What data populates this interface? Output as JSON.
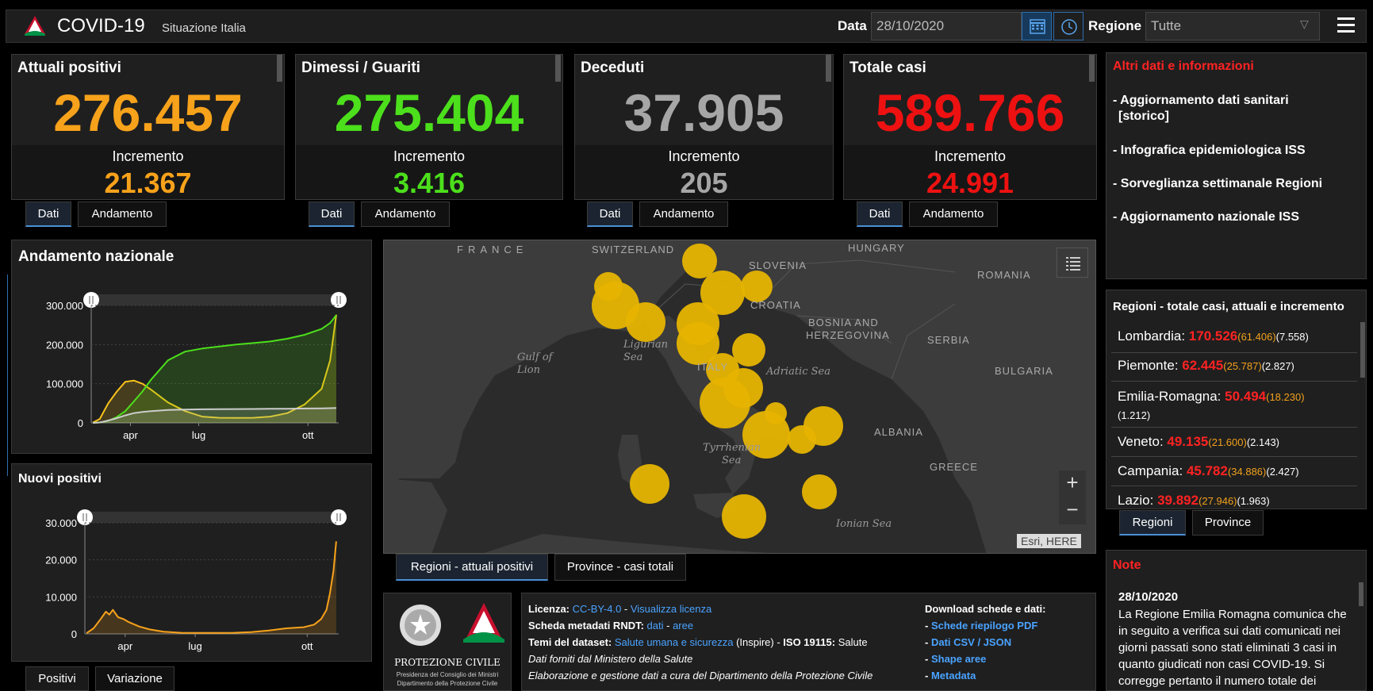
{
  "header": {
    "title": "COVID-19",
    "subtitle": "Situazione Italia",
    "date_label": "Data",
    "date_value": "28/10/2020",
    "region_label": "Regione",
    "region_value": "Tutte"
  },
  "stats": [
    {
      "title": "Attuali positivi",
      "value": "276.457",
      "incr_label": "Incremento",
      "incr": "21.367",
      "color": "#f7a21b"
    },
    {
      "title": "Dimessi / Guariti",
      "value": "275.404",
      "incr_label": "Incremento",
      "incr": "3.416",
      "color": "#4cdf1c"
    },
    {
      "title": "Deceduti",
      "value": "37.905",
      "incr_label": "Incremento",
      "incr": "205",
      "color": "#a6a6a6"
    },
    {
      "title": "Totale casi",
      "value": "589.766",
      "incr_label": "Incremento",
      "incr": "24.991",
      "color": "#ee1111"
    }
  ],
  "stat_tabs": {
    "dati": "Dati",
    "andamento": "Andamento"
  },
  "info": {
    "title": "Altri dati e informazioni",
    "items": [
      "- Aggiornamento dati sanitari",
      "[storico]",
      "- Infografica epidemiologica ISS",
      "- Sorveglianza settimanale Regioni",
      "- Aggiornamento nazionale ISS"
    ]
  },
  "regions": {
    "title": "Regioni - totale casi, attuali e incremento",
    "rows": [
      {
        "name": "Lombardia: ",
        "total": "170.526",
        "att": "(61.406)",
        "inc": "(7.558)"
      },
      {
        "name": "Piemonte: ",
        "total": "62.445",
        "att": "(25.787)",
        "inc": "(2.827)"
      },
      {
        "name": "Emilia-Romagna: ",
        "total": "50.494",
        "att": "(18.230)",
        "inc": "(1.212)"
      },
      {
        "name": "Veneto: ",
        "total": "49.135",
        "att": "(21.600)",
        "inc": "(2.143)"
      },
      {
        "name": "Campania: ",
        "total": "45.782",
        "att": "(34.886)",
        "inc": "(2.427)"
      },
      {
        "name": "Lazio: ",
        "total": "39.892",
        "att": "(27.946)",
        "inc": "(1.963)"
      }
    ],
    "tab_regioni": "Regioni",
    "tab_province": "Province"
  },
  "chart_data": [
    {
      "type": "area",
      "title": "Andamento nazionale",
      "x_ticks": [
        "apr",
        "lug",
        "ott"
      ],
      "y_ticks": [
        "0",
        "100.000",
        "200.000",
        "300.000"
      ],
      "ylim": [
        0,
        300000
      ],
      "x_months": [
        2.8,
        3.0,
        3.25,
        3.5,
        3.75,
        4.0,
        4.25,
        4.5,
        5.0,
        5.5,
        6.0,
        6.5,
        7.0,
        7.5,
        8.0,
        8.5,
        9.0,
        9.5,
        9.75,
        9.93
      ],
      "series": [
        {
          "name": "Attuali positivi",
          "color": "#f7c21b",
          "values": [
            1000,
            10000,
            50000,
            80000,
            105000,
            108000,
            100000,
            85000,
            52000,
            30000,
            16000,
            13000,
            12500,
            13000,
            16000,
            25000,
            47000,
            87000,
            160000,
            276457
          ]
        },
        {
          "name": "Dimessi / Guariti",
          "color": "#4cdf1c",
          "values": [
            0,
            1000,
            5000,
            15000,
            30000,
            55000,
            80000,
            110000,
            160000,
            182000,
            190000,
            195000,
            200000,
            204000,
            208000,
            215000,
            225000,
            240000,
            255000,
            275404
          ]
        },
        {
          "name": "Deceduti",
          "color": "#cccccc",
          "values": [
            0,
            1000,
            6000,
            12000,
            19000,
            25000,
            28000,
            30000,
            33000,
            34000,
            34700,
            35100,
            35300,
            35500,
            35800,
            36100,
            36600,
            37100,
            37500,
            37905
          ]
        }
      ]
    },
    {
      "type": "area",
      "title": "Nuovi positivi",
      "x_ticks": [
        "apr",
        "lug",
        "ott"
      ],
      "y_ticks": [
        "0",
        "10.000",
        "20.000",
        "30.000"
      ],
      "ylim": [
        0,
        30000
      ],
      "x_months": [
        2.8,
        3.0,
        3.2,
        3.35,
        3.45,
        3.55,
        3.7,
        3.85,
        4.0,
        4.3,
        4.6,
        5.0,
        5.5,
        6.0,
        6.5,
        7.0,
        7.5,
        8.0,
        8.5,
        9.0,
        9.3,
        9.5,
        9.65,
        9.75,
        9.85,
        9.93
      ],
      "series": [
        {
          "name": "Nuovi positivi",
          "color": "#f7a21b",
          "values": [
            200,
            1500,
            4000,
            6000,
            5200,
            6500,
            4500,
            4000,
            3200,
            2000,
            1200,
            600,
            300,
            250,
            250,
            300,
            500,
            900,
            1500,
            1800,
            2500,
            4000,
            6500,
            11000,
            17000,
            24991
          ]
        }
      ]
    }
  ],
  "chart_tabs": {
    "positivi": "Positivi",
    "variazione": "Variazione"
  },
  "map": {
    "labels": {
      "france": "FRANCE",
      "switzerland": "SWITZERLAND",
      "slovenia": "SLOVENIA",
      "hungary": "HUNGARY",
      "romania": "ROMANIA",
      "croatia": "CROATIA",
      "bosnia": "BOSNIA AND",
      "herzegovina": "HERZEGOVINA",
      "serbia": "SERBIA",
      "bulgaria": "BULGARIA",
      "italy": "ITALY",
      "albania": "ALBANIA",
      "greece": "GREECE",
      "gulf1": "Gulf of",
      "gulf2": "Lion",
      "ligurian1": "Ligurian",
      "ligurian2": "Sea",
      "adriatic": "Adriatic Sea",
      "tyrrhenian1": "Tyrrhenian",
      "tyrrhenian2": "Sea",
      "ionian": "Ionian Sea"
    },
    "bubble_color": "#e6b400",
    "attribution": "Esri, HERE",
    "zoom_in": "+",
    "zoom_out": "−",
    "tab_regioni": "Regioni - attuali positivi",
    "tab_province": "Province - casi totali"
  },
  "footer": {
    "logo_text1": "PROTEZIONE CIVILE",
    "logo_text2": "Presidenza del Consiglio dei Ministri",
    "logo_text3": "Dipartimento della Protezione Civile",
    "l1_bold": "Licenza:",
    "l1_link1": "CC-BY-4.0",
    "l1_sep": " - ",
    "l1_link2": "Visualizza licenza",
    "l2_bold": "Scheda metadati RNDT:",
    "l2_link1": "dati",
    "l2_sep": " - ",
    "l2_link2": "aree",
    "l3_bold": "Temi del dataset:",
    "l3_link": "Salute umana e sicurezza",
    "l3_rest": " (Inspire) - ",
    "l3_bold2": "ISO 19115:",
    "l3_rest2": " Salute",
    "l4": "Dati forniti dal Ministero della Salute",
    "l5": "Elaborazione e gestione dati a cura del Dipartimento della Protezione Civile",
    "dl_title": "Download schede e dati:",
    "dl_items": [
      "Schede riepilogo PDF",
      "Dati CSV / JSON",
      "Shape aree",
      "Metadata"
    ],
    "dl_prefix": "- "
  },
  "note": {
    "title": "Note",
    "date": "28/10/2020",
    "text": "La Regione Emilia Romagna comunica che in seguito a verifica sui dati comunicati nei giorni passati sono stati eliminati 3 casi in quanto giudicati non casi COVID-19. Si corregge pertanto il numero totale dei"
  }
}
